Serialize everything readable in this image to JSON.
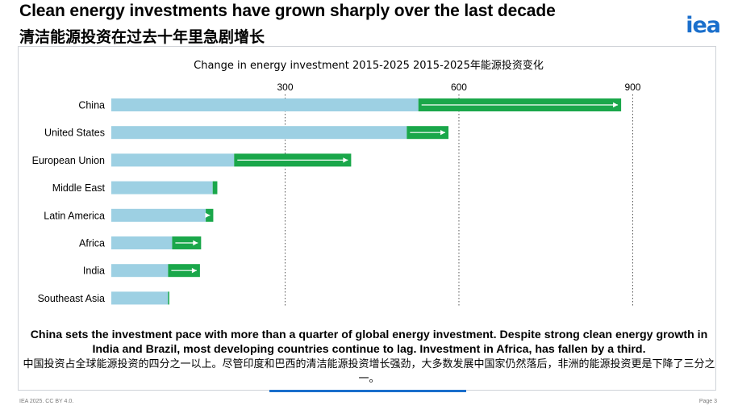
{
  "header": {
    "title_en": "Clean energy investments have grown sharply over the last decade",
    "title_zh": "清洁能源投资在过去十年里急剧增长",
    "logo_text": "iea"
  },
  "chart_data": {
    "type": "bar",
    "title": "Change in energy investment 2015-2025 2015-2025年能源投资变化",
    "xlabel": "",
    "ylabel": "",
    "xlim": [
      0,
      930
    ],
    "ticks": [
      300,
      600,
      900
    ],
    "grid": true,
    "categories": [
      "China",
      "United States",
      "European Union",
      "Middle East",
      "Latin America",
      "Africa",
      "India",
      "Southeast Asia"
    ],
    "series": [
      {
        "values": [
          530,
          510,
          212,
          175,
          163,
          105,
          98,
          98
        ]
      },
      {
        "values": [
          880,
          582,
          414,
          183,
          176,
          155,
          153,
          100
        ]
      }
    ],
    "colors": {
      "base": "#9dd0e3",
      "increase": "#1aa74a",
      "decrease": "#e8191b",
      "grid": "#555555"
    }
  },
  "caption": {
    "en": "China sets the investment pace with more than a quarter of global energy investment. Despite strong clean energy growth in India and Brazil, most developing countries continue to lag. Investment in Africa, has fallen by a third.",
    "zh": "中国投资占全球能源投资的四分之一以上。尽管印度和巴西的清洁能源投资增长强劲，大多数发展中国家仍然落后，非洲的能源投资更是下降了三分之一。"
  },
  "footer": {
    "left": "IEA 2025. CC BY 4.0.",
    "right": "Page 3"
  }
}
